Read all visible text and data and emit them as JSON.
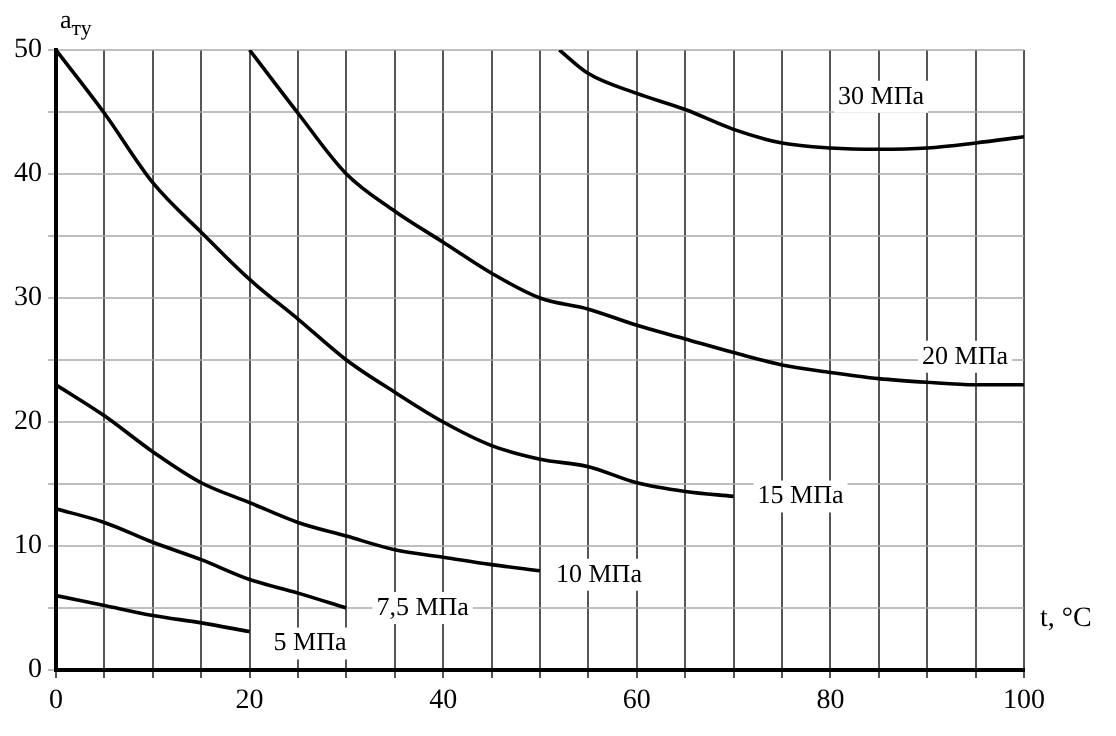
{
  "chart_data": {
    "type": "line",
    "xlabel": "t, °C",
    "ylabel": "a$_{ту}$",
    "xlim": [
      0,
      100
    ],
    "ylim": [
      0,
      50
    ],
    "xticks": [
      0,
      {
        "value": 5,
        "label": null
      },
      {
        "value": 10,
        "label": null
      },
      {
        "value": 15,
        "label": null
      },
      20,
      {
        "value": 25,
        "label": null
      },
      {
        "value": 30,
        "label": null
      },
      {
        "value": 35,
        "label": null
      },
      40,
      {
        "value": 45,
        "label": null
      },
      {
        "value": 50,
        "label": null
      },
      {
        "value": 55,
        "label": null
      },
      60,
      {
        "value": 65,
        "label": null
      },
      {
        "value": 70,
        "label": null
      },
      {
        "value": 75,
        "label": null
      },
      80,
      {
        "value": 85,
        "label": null
      },
      {
        "value": 90,
        "label": null
      },
      {
        "value": 95,
        "label": null
      },
      100
    ],
    "yticks": [
      0,
      {
        "value": 5,
        "label": null
      },
      10,
      {
        "value": 15,
        "label": null
      },
      20,
      {
        "value": 25,
        "label": null
      },
      30,
      {
        "value": 35,
        "label": null
      },
      40,
      {
        "value": 45,
        "label": null
      },
      50
    ],
    "grid": true,
    "legend": false,
    "marker": "none",
    "line_style": "solid",
    "series": [
      {
        "name": "5 МПа",
        "color": "#000000",
        "x": [
          0,
          5,
          10,
          15,
          20
        ],
        "values": [
          6,
          5.2,
          4.4,
          3.8,
          3.1
        ]
      },
      {
        "name": "7,5 МПа",
        "color": "#000000",
        "x": [
          0,
          5,
          10,
          15,
          20,
          25,
          30
        ],
        "values": [
          13,
          11.9,
          10.3,
          8.9,
          7.3,
          6.2,
          5
        ]
      },
      {
        "name": "10 МПа",
        "color": "#000000",
        "x": [
          0,
          5,
          10,
          15,
          20,
          25,
          30,
          35,
          40,
          45,
          50
        ],
        "values": [
          23,
          20.5,
          17.6,
          15.1,
          13.5,
          11.9,
          10.8,
          9.7,
          9.1,
          8.5,
          8
        ]
      },
      {
        "name": "15 МПа",
        "color": "#000000",
        "x": [
          0,
          5,
          10,
          15,
          20,
          25,
          30,
          35,
          40,
          45,
          50,
          55,
          60,
          65,
          70
        ],
        "values": [
          50,
          44.9,
          39.3,
          35.3,
          31.5,
          28.3,
          25,
          22.4,
          20,
          18.1,
          17,
          16.4,
          15.1,
          14.4,
          14
        ]
      },
      {
        "name": "20 МПа",
        "color": "#000000",
        "x": [
          20,
          25,
          30,
          35,
          40,
          45,
          50,
          55,
          60,
          65,
          70,
          75,
          80,
          85,
          90,
          95,
          100
        ],
        "values": [
          50,
          44.9,
          40,
          37,
          34.5,
          32,
          30,
          29.1,
          27.8,
          26.7,
          25.6,
          24.6,
          24,
          23.5,
          23.2,
          23,
          23
        ]
      },
      {
        "name": "30 МПа",
        "color": "#000000",
        "x": [
          52,
          55,
          60,
          65,
          70,
          75,
          80,
          85,
          90,
          95,
          100
        ],
        "values": [
          50,
          48.1,
          46.5,
          45.2,
          43.6,
          42.5,
          42.1,
          42,
          42.1,
          42.5,
          43
        ]
      }
    ]
  }
}
